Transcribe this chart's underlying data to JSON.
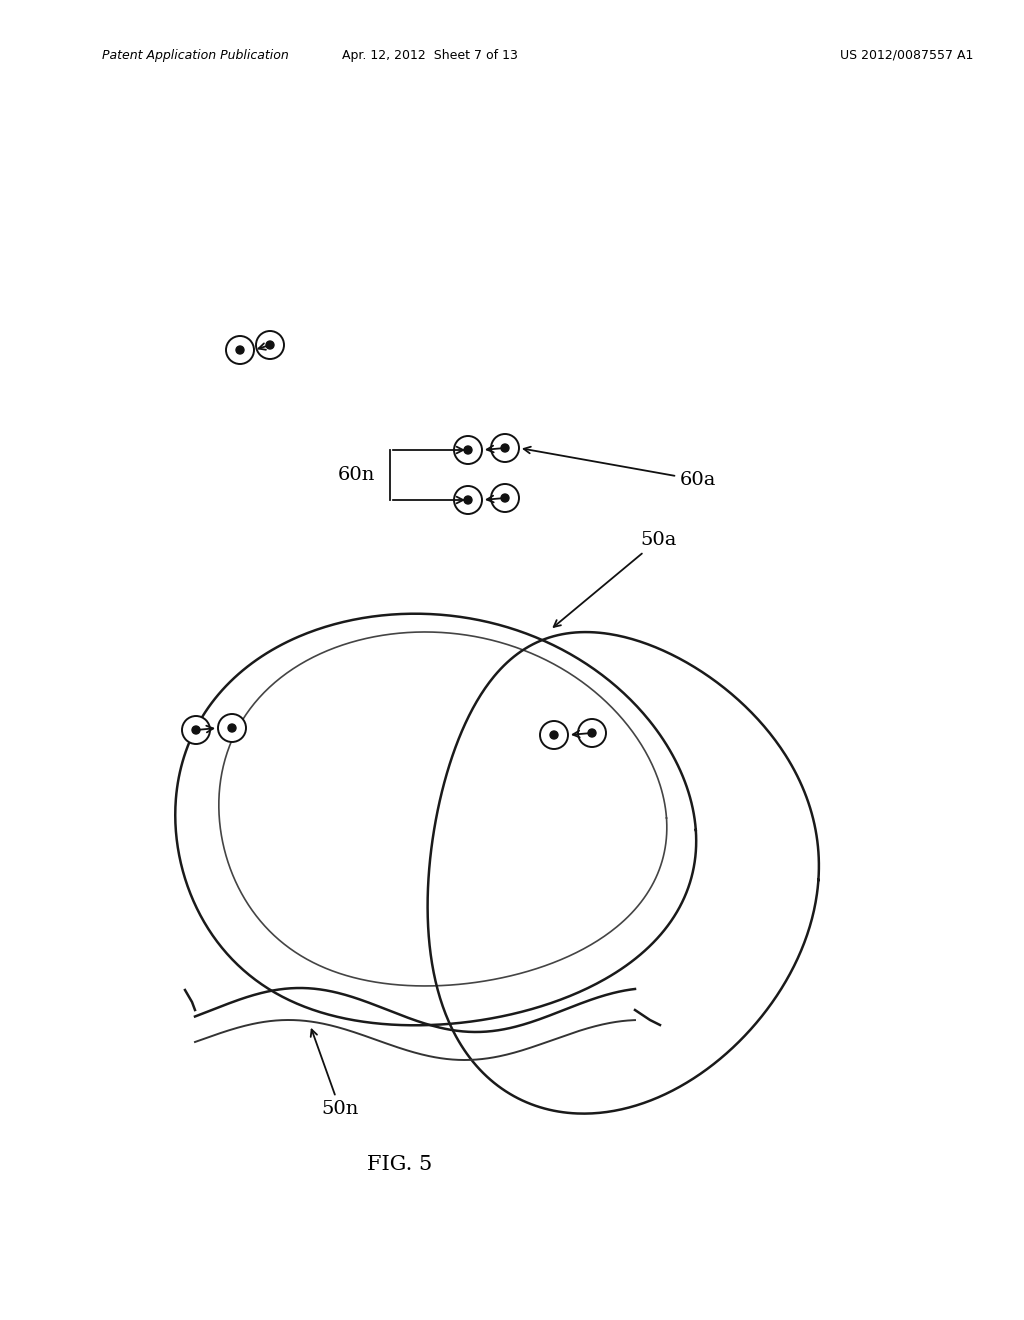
{
  "header_left": "Patent Application Publication",
  "header_center": "Apr. 12, 2012  Sheet 7 of 13",
  "header_right": "US 2012/0087557 A1",
  "bg_color": "#ffffff",
  "fig_label": "FIG. 5"
}
